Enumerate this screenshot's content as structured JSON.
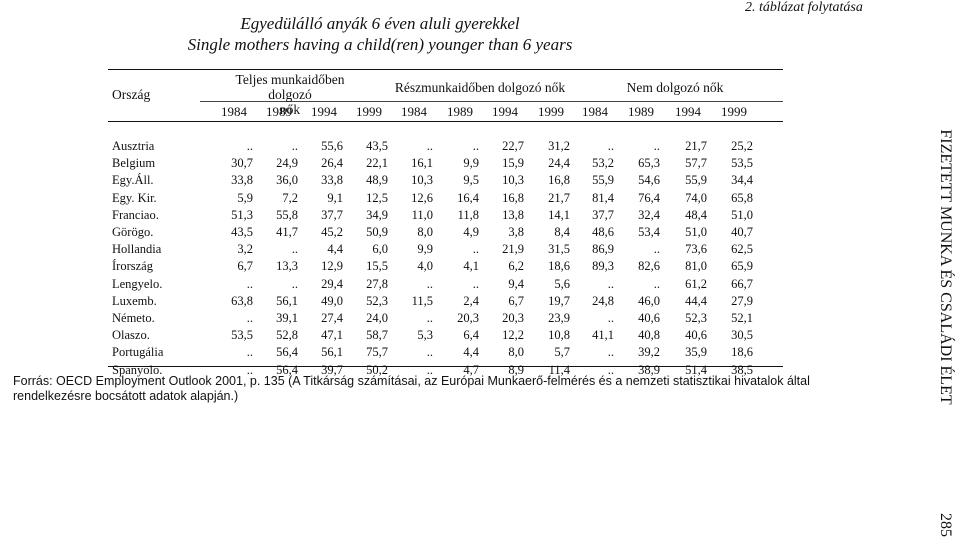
{
  "continuation": "2. táblázat folytatása",
  "title_hu": "Egyedülálló anyák 6 éven aluli gyerekkel",
  "title_en": "Single mothers having a child(ren) younger than 6 years",
  "side_title": "FIZETETT MUNKA ÉS CSALÁDI ÉLET",
  "page_number": "285",
  "table": {
    "country_header": "Ország",
    "groups": [
      {
        "line1": "Teljes munkaidőben dolgozó",
        "line2": "nők"
      },
      {
        "line1": "Részmunkaidőben dolgozó nők",
        "line2": ""
      },
      {
        "line1": "Nem dolgozó nők",
        "line2": ""
      }
    ],
    "years": [
      "1984",
      "1989",
      "1994",
      "1999",
      "1984",
      "1989",
      "1994",
      "1999",
      "1984",
      "1989",
      "1994",
      "1999"
    ],
    "rows": [
      {
        "country": "Ausztria",
        "values": [
          "..",
          "..",
          "55,6",
          "43,5",
          "..",
          "..",
          "22,7",
          "31,2",
          "..",
          "..",
          "21,7",
          "25,2"
        ]
      },
      {
        "country": "Belgium",
        "values": [
          "30,7",
          "24,9",
          "26,4",
          "22,1",
          "16,1",
          "9,9",
          "15,9",
          "24,4",
          "53,2",
          "65,3",
          "57,7",
          "53,5"
        ]
      },
      {
        "country": "Egy.Áll.",
        "values": [
          "33,8",
          "36,0",
          "33,8",
          "48,9",
          "10,3",
          "9,5",
          "10,3",
          "16,8",
          "55,9",
          "54,6",
          "55,9",
          "34,4"
        ]
      },
      {
        "country": "Egy. Kir.",
        "values": [
          "5,9",
          "7,2",
          "9,1",
          "12,5",
          "12,6",
          "16,4",
          "16,8",
          "21,7",
          "81,4",
          "76,4",
          "74,0",
          "65,8"
        ]
      },
      {
        "country": "Franciao.",
        "values": [
          "51,3",
          "55,8",
          "37,7",
          "34,9",
          "11,0",
          "11,8",
          "13,8",
          "14,1",
          "37,7",
          "32,4",
          "48,4",
          "51,0"
        ]
      },
      {
        "country": "Görögo.",
        "values": [
          "43,5",
          "41,7",
          "45,2",
          "50,9",
          "8,0",
          "4,9",
          "3,8",
          "8,4",
          "48,6",
          "53,4",
          "51,0",
          "40,7"
        ]
      },
      {
        "country": "Hollandia",
        "values": [
          "3,2",
          "..",
          "4,4",
          "6,0",
          "9,9",
          "..",
          "21,9",
          "31,5",
          "86,9",
          "..",
          "73,6",
          "62,5"
        ]
      },
      {
        "country": "Írország",
        "values": [
          "6,7",
          "13,3",
          "12,9",
          "15,5",
          "4,0",
          "4,1",
          "6,2",
          "18,6",
          "89,3",
          "82,6",
          "81,0",
          "65,9"
        ]
      },
      {
        "country": "Lengyelo.",
        "values": [
          "..",
          "..",
          "29,4",
          "27,8",
          "..",
          "..",
          "9,4",
          "5,6",
          "..",
          "..",
          "61,2",
          "66,7"
        ]
      },
      {
        "country": "Luxemb.",
        "values": [
          "63,8",
          "56,1",
          "49,0",
          "52,3",
          "11,5",
          "2,4",
          "6,7",
          "19,7",
          "24,8",
          "46,0",
          "44,4",
          "27,9"
        ]
      },
      {
        "country": "Németo.",
        "values": [
          "..",
          "39,1",
          "27,4",
          "24,0",
          "..",
          "20,3",
          "20,3",
          "23,9",
          "..",
          "40,6",
          "52,3",
          "52,1"
        ]
      },
      {
        "country": "Olaszo.",
        "values": [
          "53,5",
          "52,8",
          "47,1",
          "58,7",
          "5,3",
          "6,4",
          "12,2",
          "10,8",
          "41,1",
          "40,8",
          "40,6",
          "30,5"
        ]
      },
      {
        "country": "Portugália",
        "values": [
          "..",
          "56,4",
          "56,1",
          "75,7",
          "..",
          "4,4",
          "8,0",
          "5,7",
          "..",
          "39,2",
          "35,9",
          "18,6"
        ]
      },
      {
        "country": "Spanyolo.",
        "values": [
          "..",
          "56,4",
          "39,7",
          "50,2",
          "..",
          "4,7",
          "8,9",
          "11,4",
          "..",
          "38,9",
          "51,4",
          "38,5"
        ]
      }
    ]
  },
  "footnote": "Forrás: OECD Employment Outlook 2001, p. 135 (A Titkárság számításai, az Európai Munkaerő-felmérés és a nemzeti statisztikai hivatalok által rendelkezésre bocsátott adatok alapján.)"
}
